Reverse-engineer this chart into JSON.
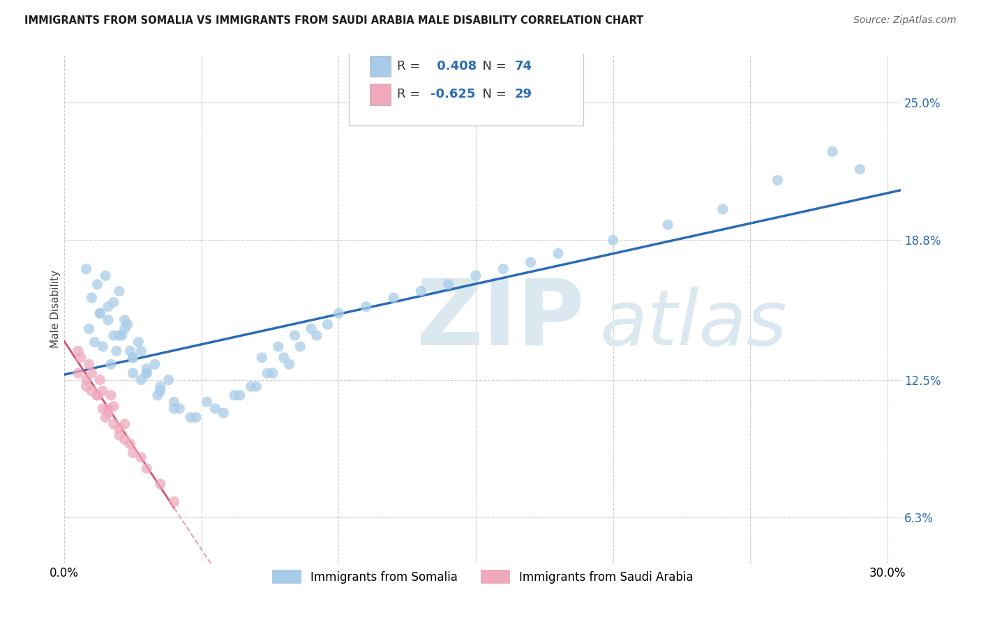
{
  "title": "IMMIGRANTS FROM SOMALIA VS IMMIGRANTS FROM SAUDI ARABIA MALE DISABILITY CORRELATION CHART",
  "source": "Source: ZipAtlas.com",
  "ylabel": "Male Disability",
  "y_ticks": [
    0.063,
    0.125,
    0.188,
    0.25
  ],
  "y_tick_labels": [
    "6.3%",
    "12.5%",
    "18.8%",
    "25.0%"
  ],
  "xlim": [
    0.0,
    0.305
  ],
  "ylim": [
    0.042,
    0.272
  ],
  "somalia_R": "0.408",
  "somalia_N": "74",
  "saudi_R": "-0.625",
  "saudi_N": "29",
  "somalia_color": "#a8cce8",
  "saudi_color": "#f0a8bc",
  "somalia_trend_color": "#2a6cb5",
  "saudi_trend_color": "#d45070",
  "saudi_trend_dash_color": "#e8a0b0",
  "watermark_color": "#dbe8f0",
  "legend_somalia": "Immigrants from Somalia",
  "legend_saudi": "Immigrants from Saudi Arabia",
  "somalia_points_x": [
    0.008,
    0.012,
    0.016,
    0.01,
    0.015,
    0.02,
    0.013,
    0.018,
    0.022,
    0.009,
    0.014,
    0.017,
    0.011,
    0.019,
    0.025,
    0.013,
    0.022,
    0.028,
    0.016,
    0.021,
    0.025,
    0.03,
    0.018,
    0.023,
    0.027,
    0.033,
    0.038,
    0.02,
    0.024,
    0.03,
    0.035,
    0.04,
    0.025,
    0.03,
    0.035,
    0.042,
    0.048,
    0.028,
    0.034,
    0.04,
    0.046,
    0.052,
    0.058,
    0.064,
    0.07,
    0.076,
    0.082,
    0.055,
    0.062,
    0.068,
    0.074,
    0.08,
    0.086,
    0.092,
    0.072,
    0.078,
    0.084,
    0.09,
    0.096,
    0.1,
    0.11,
    0.12,
    0.13,
    0.14,
    0.15,
    0.16,
    0.17,
    0.18,
    0.2,
    0.22,
    0.24,
    0.26,
    0.28,
    0.29
  ],
  "somalia_points_y": [
    0.175,
    0.168,
    0.158,
    0.162,
    0.172,
    0.165,
    0.155,
    0.145,
    0.152,
    0.148,
    0.14,
    0.132,
    0.142,
    0.138,
    0.128,
    0.155,
    0.148,
    0.138,
    0.152,
    0.145,
    0.135,
    0.128,
    0.16,
    0.15,
    0.142,
    0.132,
    0.125,
    0.145,
    0.138,
    0.13,
    0.122,
    0.115,
    0.135,
    0.128,
    0.12,
    0.112,
    0.108,
    0.125,
    0.118,
    0.112,
    0.108,
    0.115,
    0.11,
    0.118,
    0.122,
    0.128,
    0.132,
    0.112,
    0.118,
    0.122,
    0.128,
    0.135,
    0.14,
    0.145,
    0.135,
    0.14,
    0.145,
    0.148,
    0.15,
    0.155,
    0.158,
    0.162,
    0.165,
    0.168,
    0.172,
    0.175,
    0.178,
    0.182,
    0.188,
    0.195,
    0.202,
    0.215,
    0.228,
    0.22
  ],
  "saudi_points_x": [
    0.005,
    0.008,
    0.012,
    0.016,
    0.005,
    0.009,
    0.013,
    0.017,
    0.006,
    0.01,
    0.014,
    0.018,
    0.022,
    0.008,
    0.012,
    0.016,
    0.02,
    0.024,
    0.01,
    0.014,
    0.018,
    0.022,
    0.028,
    0.015,
    0.02,
    0.025,
    0.03,
    0.035,
    0.04
  ],
  "saudi_points_y": [
    0.128,
    0.122,
    0.118,
    0.112,
    0.138,
    0.132,
    0.125,
    0.118,
    0.135,
    0.128,
    0.12,
    0.113,
    0.105,
    0.125,
    0.118,
    0.11,
    0.103,
    0.096,
    0.12,
    0.112,
    0.105,
    0.098,
    0.09,
    0.108,
    0.1,
    0.092,
    0.085,
    0.078,
    0.07
  ]
}
